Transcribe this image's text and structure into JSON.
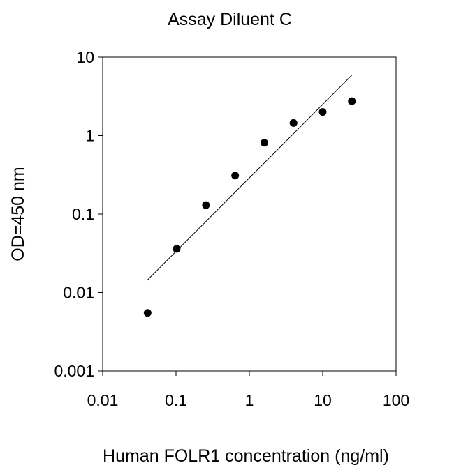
{
  "chart_data": {
    "type": "scatter",
    "title": "Assay Diluent C",
    "xlabel": "Human FOLR1 concentration (ng/ml)",
    "ylabel": "OD=450 nm",
    "x_scale": "log",
    "y_scale": "log",
    "xlim": [
      0.01,
      100
    ],
    "ylim": [
      0.001,
      10
    ],
    "x_ticks": [
      "0.01",
      "0.1",
      "1",
      "10",
      "100"
    ],
    "y_ticks": [
      "0.001",
      "0.01",
      "0.1",
      "1",
      "10"
    ],
    "grid": false,
    "legend": "none",
    "series": [
      {
        "x": [
          0.041,
          0.102,
          0.256,
          0.64,
          1.6,
          4.0,
          10.0,
          25.0
        ],
        "y": [
          0.0055,
          0.036,
          0.13,
          0.31,
          0.81,
          1.45,
          2.0,
          2.75
        ]
      }
    ],
    "trendline": {
      "x": [
        0.041,
        25.0
      ],
      "y": [
        0.0145,
        5.9
      ]
    },
    "colors": {
      "marker": "#000000",
      "line": "#000000",
      "axis": "#000000"
    }
  }
}
